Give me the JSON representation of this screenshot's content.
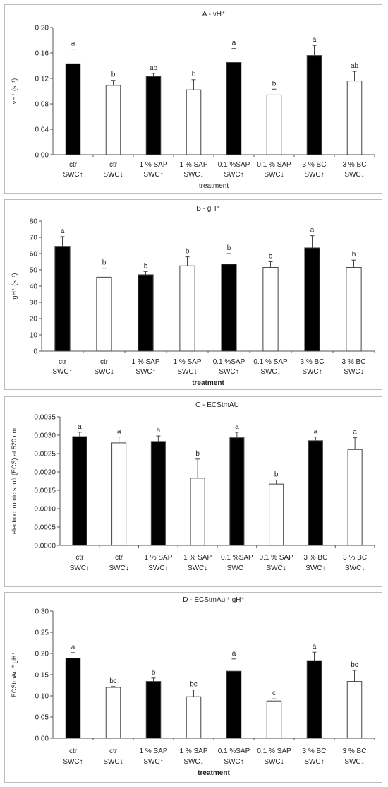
{
  "chart_data": [
    {
      "type": "bar",
      "title": "A - vH⁺",
      "xlabel": "treatment",
      "ylabel": "vH⁺ (s⁻¹)",
      "ylim": [
        0,
        0.2
      ],
      "yticks": [
        "0.00",
        "0.04",
        "0.08",
        "0.12",
        "0.16",
        "0.20"
      ],
      "tick_values": [
        0,
        0.04,
        0.08,
        0.12,
        0.16,
        0.2
      ],
      "categories": [
        [
          "ctr",
          "SWC↑"
        ],
        [
          "ctr",
          "SWC↓"
        ],
        [
          "1 % SAP",
          "SWC↑"
        ],
        [
          "1 % SAP",
          "SWC↓"
        ],
        [
          "0.1 %SAP",
          "SWC↑"
        ],
        [
          "0.1 % SAP",
          "SWC↓"
        ],
        [
          "3 % BC",
          "SWC↑"
        ],
        [
          "3 % BC",
          "SWC↓"
        ]
      ],
      "values": [
        0.143,
        0.109,
        0.123,
        0.102,
        0.145,
        0.094,
        0.156,
        0.116
      ],
      "errors": [
        0.023,
        0.008,
        0.005,
        0.016,
        0.022,
        0.009,
        0.016,
        0.015
      ],
      "letters": [
        "a",
        "b",
        "ab",
        "b",
        "a",
        "b",
        "a",
        "ab"
      ],
      "fills": [
        "#000000",
        "#ffffff",
        "#000000",
        "#ffffff",
        "#000000",
        "#ffffff",
        "#000000",
        "#ffffff"
      ],
      "grid": false
    },
    {
      "type": "bar",
      "title": "B - gH⁺",
      "xlabel": "treatment",
      "ylabel": "gH⁺ (s⁻¹)",
      "ylim": [
        0,
        80
      ],
      "yticks": [
        "0",
        "10",
        "20",
        "30",
        "40",
        "50",
        "60",
        "70",
        "80"
      ],
      "tick_values": [
        0,
        10,
        20,
        30,
        40,
        50,
        60,
        70,
        80
      ],
      "categories": [
        [
          "ctr",
          "SWC↑"
        ],
        [
          "ctr",
          "SWC↓"
        ],
        [
          "1 % SAP",
          "SWC↑"
        ],
        [
          "1 % SAP",
          "SWC↓"
        ],
        [
          "0.1 %SAP",
          "SWC↑"
        ],
        [
          "0.1 % SAP",
          "SWC↓"
        ],
        [
          "3 % BC",
          "SWC↑"
        ],
        [
          "3 % BC",
          "SWC↓"
        ]
      ],
      "values": [
        64.5,
        45.5,
        47,
        52.5,
        53.5,
        51.5,
        63.5,
        51.5
      ],
      "errors": [
        6,
        5.5,
        2,
        5.5,
        6.5,
        3.5,
        7.5,
        4.5
      ],
      "letters": [
        "a",
        "b",
        "b",
        "b",
        "b",
        "b",
        "a",
        "b"
      ],
      "fills": [
        "#000000",
        "#ffffff",
        "#000000",
        "#ffffff",
        "#000000",
        "#ffffff",
        "#000000",
        "#ffffff"
      ],
      "grid": false
    },
    {
      "type": "bar",
      "title": "C - ECStmAU",
      "xlabel": "",
      "ylabel": "electrochromic shoft (ECS) at 520 nm",
      "ylim": [
        0,
        0.0035
      ],
      "yticks": [
        "0.0000",
        "0.0005",
        "0.0010",
        "0.0015",
        "0.0020",
        "0.0025",
        "0.0030",
        "0.0035"
      ],
      "tick_values": [
        0,
        0.0005,
        0.001,
        0.0015,
        0.002,
        0.0025,
        0.003,
        0.0035
      ],
      "categories": [
        [
          "ctr",
          "SWC↑"
        ],
        [
          "ctr",
          "SWC↓"
        ],
        [
          "1 % SAP",
          "SWC↑"
        ],
        [
          "1 % SAP",
          "SWC↓"
        ],
        [
          "0.1 %SAP",
          "SWC↑"
        ],
        [
          "0.1 % SAP",
          "SWC↓"
        ],
        [
          "3 % BC",
          "SWC↑"
        ],
        [
          "3 % BC",
          "SWC↓"
        ]
      ],
      "values": [
        0.00296,
        0.00279,
        0.00283,
        0.00183,
        0.00293,
        0.00167,
        0.00285,
        0.00261
      ],
      "errors": [
        0.00012,
        0.00016,
        0.00015,
        0.00052,
        0.00015,
        0.00011,
        0.0001,
        0.00032
      ],
      "letters": [
        "a",
        "a",
        "a",
        "b",
        "a",
        "b",
        "a",
        "a"
      ],
      "fills": [
        "#000000",
        "#ffffff",
        "#000000",
        "#ffffff",
        "#000000",
        "#ffffff",
        "#000000",
        "#ffffff"
      ],
      "grid": false
    },
    {
      "type": "bar",
      "title": "D - ECStmAu * gH⁺",
      "xlabel": "treatment",
      "ylabel": "ECStmAu * gH⁺",
      "ylim": [
        0,
        0.3
      ],
      "yticks": [
        "0.00",
        "0.05",
        "0.10",
        "0.15",
        "0.20",
        "0.25",
        "0.30"
      ],
      "tick_values": [
        0,
        0.05,
        0.1,
        0.15,
        0.2,
        0.25,
        0.3
      ],
      "categories": [
        [
          "ctr",
          "SWC↑"
        ],
        [
          "ctr",
          "SWC↓"
        ],
        [
          "1 % SAP",
          "SWC↑"
        ],
        [
          "1 % SAP",
          "SWC↓"
        ],
        [
          "0.1 %SAP",
          "SWC↑"
        ],
        [
          "0.1 % SAP",
          "SWC↓"
        ],
        [
          "3 % BC",
          "SWC↑"
        ],
        [
          "3 % BC",
          "SWC↓"
        ]
      ],
      "values": [
        0.189,
        0.12,
        0.134,
        0.098,
        0.158,
        0.088,
        0.183,
        0.134
      ],
      "errors": [
        0.013,
        0.002,
        0.008,
        0.016,
        0.029,
        0.005,
        0.02,
        0.026
      ],
      "letters": [
        "a",
        "bc",
        "b",
        "bc",
        "a",
        "c",
        "a",
        "bc"
      ],
      "fills": [
        "#000000",
        "#ffffff",
        "#000000",
        "#ffffff",
        "#000000",
        "#ffffff",
        "#000000",
        "#ffffff"
      ],
      "grid": false
    }
  ]
}
